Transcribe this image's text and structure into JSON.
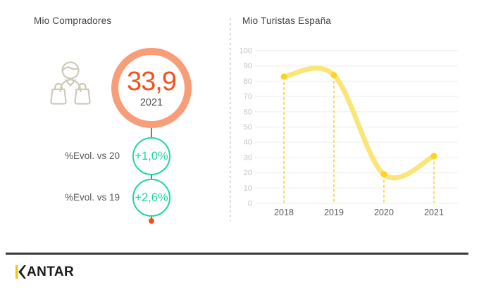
{
  "left_panel": {
    "title": "Mio Compradores",
    "icon": "female-shopper-with-bags",
    "kpi": {
      "value": "33,9",
      "year": "2021"
    },
    "evolutions": [
      {
        "label": "%Evol. vs 20",
        "value": "+1,0%"
      },
      {
        "label": "%Evol. vs 19",
        "value": "+2,6%"
      }
    ]
  },
  "right_panel": {
    "title": "Mio Turistas España"
  },
  "chart_data": {
    "type": "line",
    "title": "Mio Turistas España",
    "x": [
      "2018",
      "2019",
      "2020",
      "2021"
    ],
    "values": [
      83,
      84,
      19,
      31
    ],
    "ylim": [
      0,
      100
    ],
    "yticks": [
      0,
      10,
      20,
      30,
      40,
      50,
      60,
      70,
      80,
      90,
      100
    ],
    "xlabel": "",
    "ylabel": "",
    "grid": true,
    "smooth": true,
    "legend": "none",
    "droplines": "dashed vertical line from each data point to x-axis"
  },
  "footer": {
    "brand_k": "K",
    "brand_rest": "ANTAR"
  },
  "colors": {
    "ring_salmon": "#F79E79",
    "value_orange": "#F2511E",
    "teal": "#1ED7A4",
    "line_yellow": "#FAE678",
    "point_gold": "#FFD21E",
    "grid_gray": "#F2F2F2",
    "ytick_gray": "#C3C3C3",
    "xtick_gray": "#595959",
    "title_gray": "#404040",
    "divider_gray": "#D8D8D8",
    "kantar_gold": "#F0C419",
    "kantar_black": "#1A1A1A"
  }
}
